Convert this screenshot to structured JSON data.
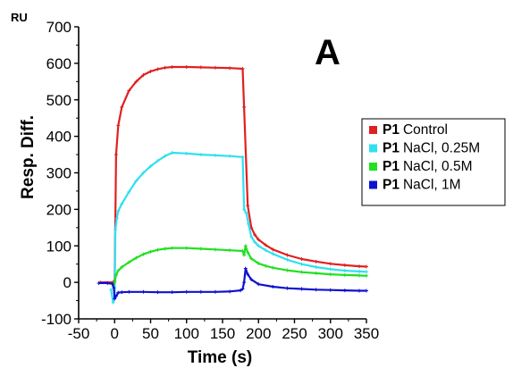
{
  "chart_data": {
    "type": "line",
    "panel_label": "A",
    "xlabel": "Time (s)",
    "ylabel": "Resp. Diff.",
    "y_unit": "RU",
    "xlim": [
      -50,
      350
    ],
    "ylim": [
      -100,
      700
    ],
    "xticks": [
      -50,
      0,
      50,
      100,
      150,
      200,
      250,
      300,
      350
    ],
    "yticks": [
      -100,
      0,
      100,
      200,
      300,
      400,
      500,
      600,
      700
    ],
    "grid": false,
    "legend_position": "right",
    "series": [
      {
        "name": "Control",
        "prefix": "P1",
        "color": "#e02020",
        "x": [
          -20,
          -2,
          0,
          2,
          5,
          10,
          20,
          30,
          40,
          50,
          60,
          70,
          80,
          100,
          120,
          140,
          160,
          178,
          180,
          185,
          190,
          195,
          200,
          210,
          220,
          240,
          260,
          280,
          300,
          320,
          340,
          350
        ],
        "y": [
          0,
          0,
          5,
          350,
          430,
          480,
          525,
          550,
          568,
          578,
          584,
          588,
          590,
          590,
          589,
          588,
          587,
          585,
          480,
          210,
          150,
          130,
          117,
          102,
          90,
          75,
          64,
          57,
          51,
          47,
          44,
          43
        ]
      },
      {
        "name": "NaCl, 0.25M",
        "prefix": "P1",
        "color": "#30e0f0",
        "x": [
          -5,
          -2,
          0,
          1,
          3,
          5,
          10,
          20,
          30,
          40,
          50,
          60,
          70,
          80,
          100,
          120,
          140,
          160,
          178,
          180,
          183,
          186,
          190,
          195,
          200,
          210,
          220,
          240,
          260,
          280,
          300,
          320,
          340,
          350
        ],
        "y": [
          -20,
          -55,
          -40,
          145,
          175,
          195,
          215,
          248,
          278,
          300,
          318,
          333,
          346,
          355,
          353,
          350,
          348,
          346,
          343,
          200,
          190,
          160,
          125,
          110,
          100,
          88,
          78,
          62,
          50,
          42,
          36,
          32,
          30,
          29
        ]
      },
      {
        "name": "NaCl, 0.5M",
        "prefix": "P1",
        "color": "#20e020",
        "x": [
          -2,
          0,
          2,
          5,
          10,
          20,
          30,
          40,
          50,
          60,
          70,
          80,
          100,
          120,
          140,
          160,
          178,
          180,
          182,
          185,
          190,
          200,
          210,
          220,
          240,
          260,
          280,
          300,
          320,
          340,
          350
        ],
        "y": [
          -10,
          0,
          20,
          32,
          42,
          55,
          67,
          77,
          84,
          89,
          92,
          94,
          94,
          92,
          90,
          88,
          86,
          75,
          100,
          82,
          65,
          52,
          45,
          40,
          33,
          28,
          25,
          22,
          20,
          19,
          18
        ]
      },
      {
        "name": "NaCl, 1M",
        "prefix": "P1",
        "color": "#1010d0",
        "x": [
          -22,
          -10,
          -3,
          -1,
          0,
          2,
          5,
          10,
          20,
          40,
          60,
          80,
          100,
          120,
          140,
          160,
          175,
          178,
          180,
          182,
          185,
          190,
          200,
          220,
          240,
          260,
          280,
          300,
          320,
          340,
          350
        ],
        "y": [
          -2,
          -2,
          -4,
          -15,
          -45,
          -38,
          -28,
          -27,
          -26,
          -26,
          -27,
          -27,
          -26,
          -26,
          -26,
          -25,
          -22,
          -18,
          0,
          38,
          22,
          8,
          -5,
          -12,
          -16,
          -18,
          -20,
          -21,
          -22,
          -23,
          -23
        ]
      }
    ]
  }
}
